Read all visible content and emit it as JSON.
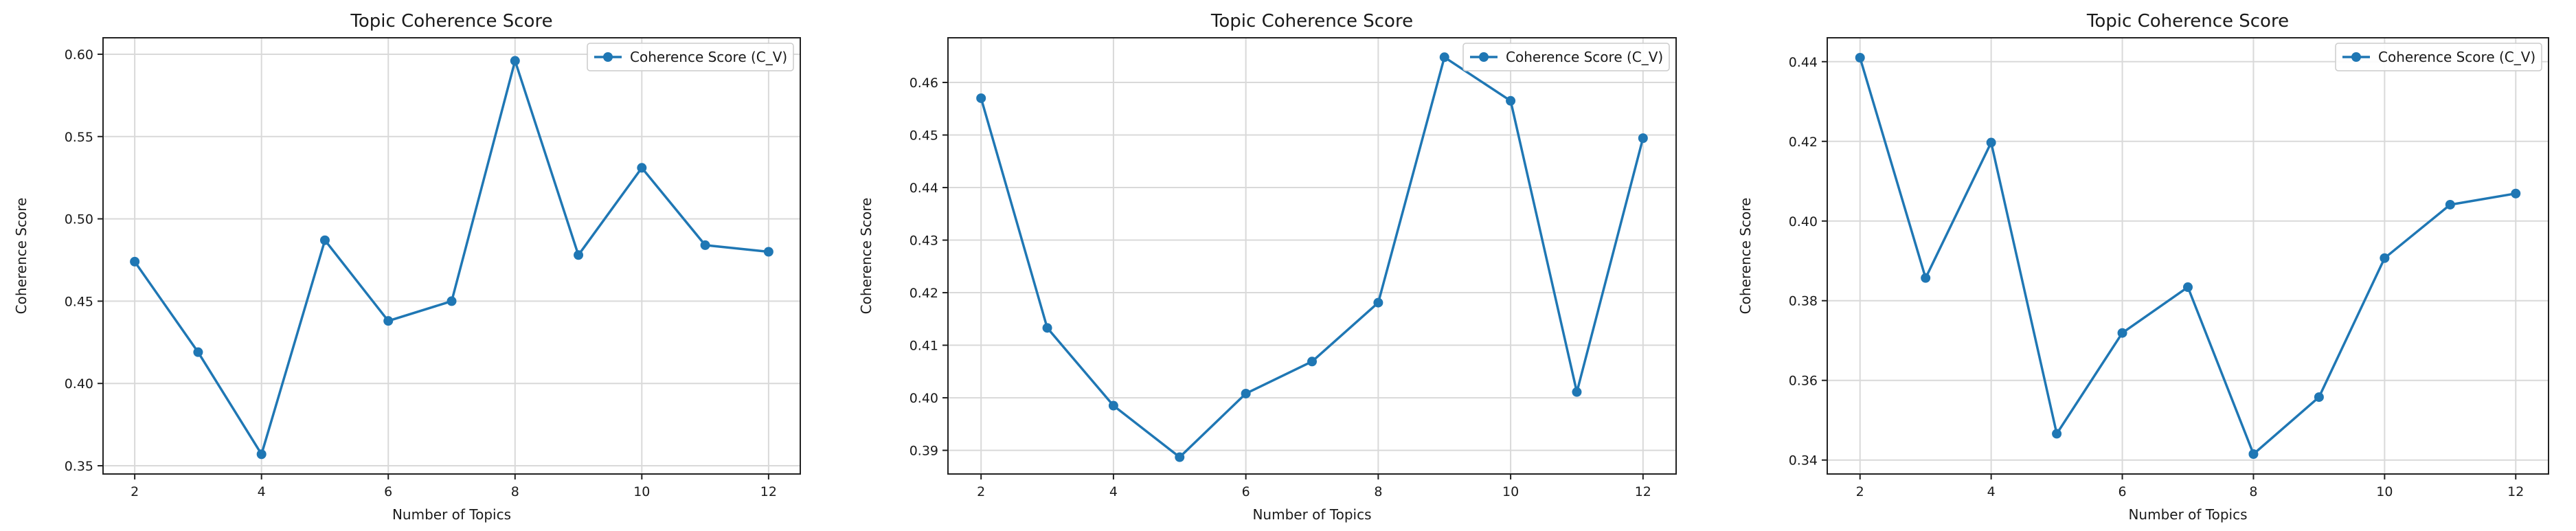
{
  "chart_data": [
    {
      "type": "line",
      "title": "Topic Coherence Score",
      "xlabel": "Number of Topics",
      "ylabel": "Coherence Score",
      "x": [
        2,
        3,
        4,
        5,
        6,
        7,
        8,
        9,
        10,
        11,
        12
      ],
      "series": [
        {
          "name": "Coherence Score (C_V)",
          "values": [
            0.474,
            0.419,
            0.357,
            0.487,
            0.438,
            0.45,
            0.596,
            0.478,
            0.531,
            0.484,
            0.48
          ],
          "color": "#1f77b4"
        }
      ],
      "xlim": [
        1.5,
        12.5
      ],
      "ylim": [
        0.345,
        0.61
      ],
      "xticks": [
        2,
        4,
        6,
        8,
        10,
        12
      ],
      "yticks": [
        0.35,
        0.4,
        0.45,
        0.5,
        0.55,
        0.6
      ],
      "ytick_labels": [
        "0.35",
        "0.40",
        "0.45",
        "0.50",
        "0.55",
        "0.60"
      ],
      "grid": true,
      "legend": "top-right"
    },
    {
      "type": "line",
      "title": "Topic Coherence Score",
      "xlabel": "Number of Topics",
      "ylabel": "Coherence Score",
      "x": [
        2,
        3,
        4,
        5,
        6,
        7,
        8,
        9,
        10,
        11,
        12
      ],
      "series": [
        {
          "name": "Coherence Score (C_V)",
          "values": [
            0.457,
            0.4133,
            0.3985,
            0.3887,
            0.4008,
            0.4069,
            0.4181,
            0.4648,
            0.4565,
            0.4011,
            0.4494
          ],
          "color": "#1f77b4"
        }
      ],
      "xlim": [
        1.5,
        12.5
      ],
      "ylim": [
        0.3855,
        0.4685
      ],
      "xticks": [
        2,
        4,
        6,
        8,
        10,
        12
      ],
      "yticks": [
        0.39,
        0.4,
        0.41,
        0.42,
        0.43,
        0.44,
        0.45,
        0.46
      ],
      "ytick_labels": [
        "0.39",
        "0.40",
        "0.41",
        "0.42",
        "0.43",
        "0.44",
        "0.45",
        "0.46"
      ],
      "grid": true,
      "legend": "top-right"
    },
    {
      "type": "line",
      "title": "Topic Coherence Score",
      "xlabel": "Number of Topics",
      "ylabel": "Coherence Score",
      "x": [
        2,
        3,
        4,
        5,
        6,
        7,
        8,
        9,
        10,
        11,
        12
      ],
      "series": [
        {
          "name": "Coherence Score (C_V)",
          "values": [
            0.441,
            0.3857,
            0.4197,
            0.3466,
            0.3719,
            0.3834,
            0.3415,
            0.3558,
            0.3907,
            0.4041,
            0.4069
          ],
          "color": "#1f77b4"
        }
      ],
      "xlim": [
        1.5,
        12.5
      ],
      "ylim": [
        0.3365,
        0.446
      ],
      "xticks": [
        2,
        4,
        6,
        8,
        10,
        12
      ],
      "yticks": [
        0.34,
        0.36,
        0.38,
        0.4,
        0.42,
        0.44
      ],
      "ytick_labels": [
        "0.34",
        "0.36",
        "0.38",
        "0.40",
        "0.42",
        "0.44"
      ],
      "grid": true,
      "legend": "top-right"
    }
  ]
}
